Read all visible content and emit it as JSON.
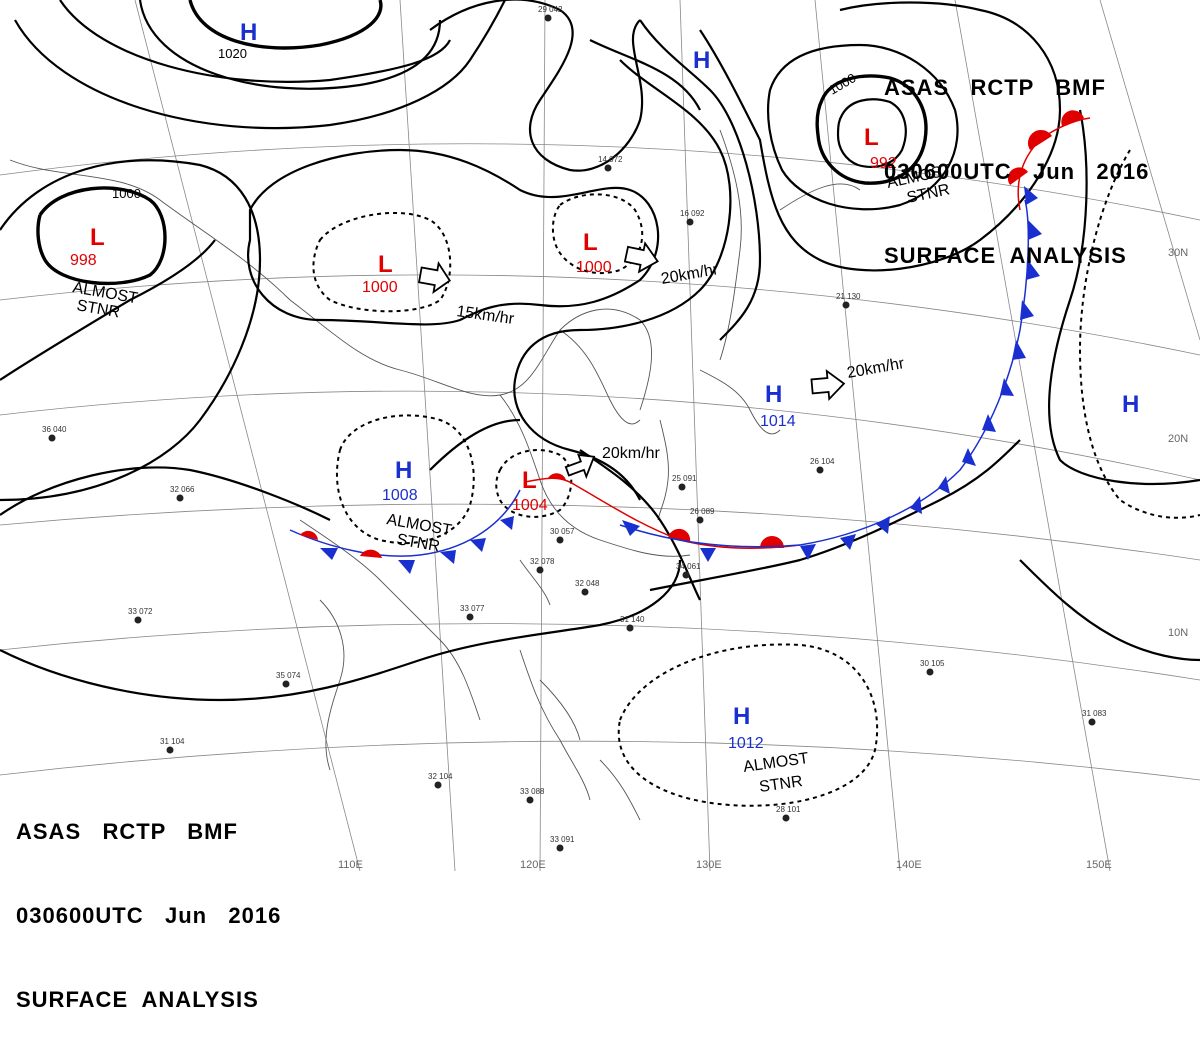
{
  "header": {
    "line1": "ASAS   RCTP   BMF",
    "line2": "030600UTC   Jun   2016",
    "line3": "SURFACE  ANALYSIS"
  },
  "colors": {
    "low": "#e00000",
    "high": "#1a2fd0",
    "warm_front": "#e00000",
    "cold_front": "#1a2fd0",
    "isobar": "#000000",
    "coast": "#555555",
    "graticule": "#888888"
  },
  "pressure_centers": [
    {
      "id": "low-west",
      "type": "L",
      "value": "998",
      "note": [
        "ALMOST",
        "STNR"
      ]
    },
    {
      "id": "low-mongolia",
      "type": "L",
      "value": "1000"
    },
    {
      "id": "low-manchuria",
      "type": "L",
      "value": "1000"
    },
    {
      "id": "low-kamchatka",
      "type": "L",
      "value": "992",
      "note": [
        "ALMOST",
        "STNR"
      ]
    },
    {
      "id": "low-china-east",
      "type": "L",
      "value": "1004"
    },
    {
      "id": "high-top",
      "type": "H",
      "value": ""
    },
    {
      "id": "high-okhotsk",
      "type": "H",
      "value": ""
    },
    {
      "id": "high-china",
      "type": "H",
      "value": "1008",
      "note": [
        "ALMOST",
        "STNR"
      ]
    },
    {
      "id": "high-japan",
      "type": "H",
      "value": "1014"
    },
    {
      "id": "high-pacific-east",
      "type": "H",
      "value": ""
    },
    {
      "id": "high-philippine-sea",
      "type": "H",
      "value": "1012",
      "note": [
        "ALMOST",
        "STNR"
      ]
    }
  ],
  "isobar_labels": [
    "1020",
    "1000",
    "1000"
  ],
  "motion_vectors": [
    {
      "id": "move-mongolia",
      "speed": "15km/hr"
    },
    {
      "id": "move-manchuria",
      "speed": "20km/hr"
    },
    {
      "id": "move-china-east",
      "speed": "20km/hr"
    },
    {
      "id": "move-japan",
      "speed": "20km/hr"
    }
  ],
  "latitude_labels": [
    "30N",
    "20N",
    "10N"
  ],
  "longitude_labels": [
    "110E",
    "120E",
    "130E",
    "140E",
    "150E"
  ],
  "station_samples": [
    "29 042",
    "14 072",
    "21 130",
    "16 092",
    "26 104",
    "33 077",
    "30 105",
    "31 083",
    "28 101",
    "36 040",
    "32 066",
    "33 072",
    "35 074",
    "31 104",
    "32 104",
    "33 088",
    "33 091",
    "25 091",
    "26 089",
    "34 061",
    "31 140",
    "30 057",
    "32 078",
    "32 048"
  ]
}
